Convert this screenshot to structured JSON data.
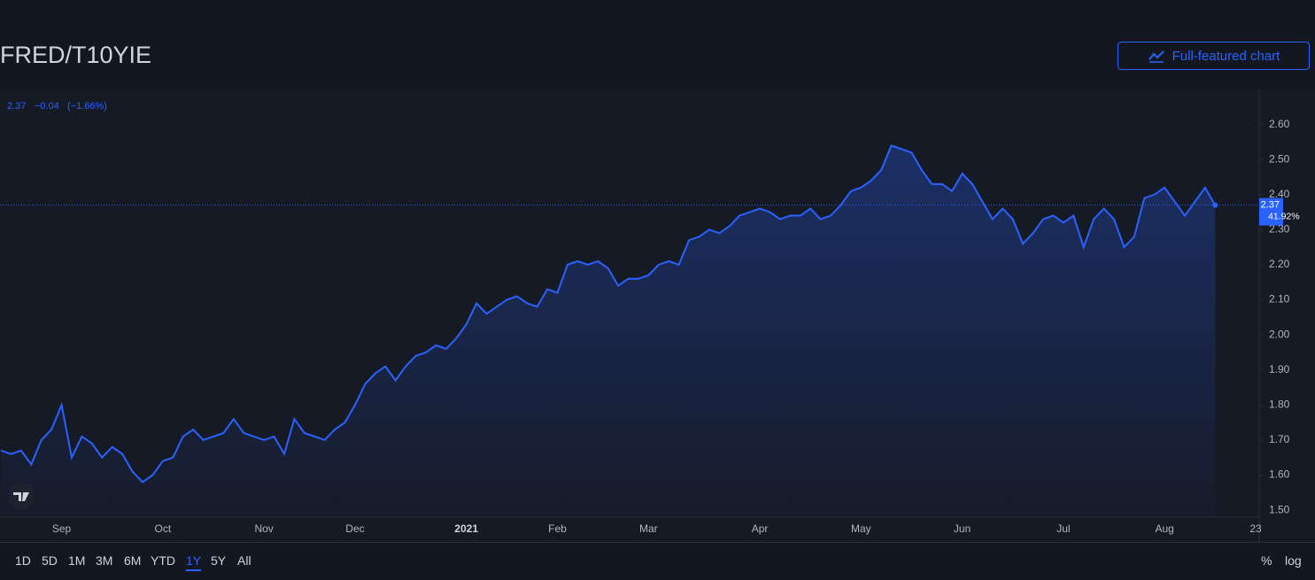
{
  "header": {
    "title": "FRED/T10YIE",
    "button": "Full-featured chart"
  },
  "chart_data": {
    "type": "area",
    "legend": {
      "last": 2.37,
      "change": {
        "value": -0.04,
        "label": "−0.04"
      },
      "change_pct": {
        "value": -1.66,
        "label": "(−1.66%)"
      }
    },
    "last_badge": {
      "price": 2.37,
      "pct": {
        "value": 41.92,
        "label": "41.92%"
      }
    },
    "categories": [
      null,
      null,
      null,
      null,
      null,
      null,
      "Sep",
      null,
      null,
      null,
      null,
      null,
      null,
      null,
      null,
      null,
      "Oct",
      null,
      null,
      null,
      null,
      null,
      null,
      null,
      null,
      null,
      "Nov",
      null,
      null,
      null,
      null,
      null,
      null,
      null,
      null,
      "Dec",
      null,
      null,
      null,
      null,
      null,
      null,
      null,
      null,
      null,
      null,
      "2021",
      null,
      null,
      null,
      null,
      null,
      null,
      null,
      null,
      "Feb",
      null,
      null,
      null,
      null,
      null,
      null,
      null,
      null,
      "Mar",
      null,
      null,
      null,
      null,
      null,
      null,
      null,
      null,
      null,
      null,
      "Apr",
      null,
      null,
      null,
      null,
      null,
      null,
      null,
      null,
      null,
      "May",
      null,
      null,
      null,
      null,
      null,
      null,
      null,
      null,
      null,
      "Jun",
      null,
      null,
      null,
      null,
      null,
      null,
      null,
      null,
      null,
      "Jul",
      null,
      null,
      null,
      null,
      null,
      null,
      null,
      null,
      null,
      "Aug",
      null,
      null,
      null,
      null,
      null,
      null,
      null,
      null,
      "23"
    ],
    "series": [
      {
        "name": "FRED/T10YIE",
        "color": "#2962ff",
        "values": [
          1.67,
          1.66,
          1.67,
          1.63,
          1.7,
          1.73,
          1.8,
          1.65,
          1.71,
          1.69,
          1.65,
          1.68,
          1.66,
          1.61,
          1.58,
          1.6,
          1.64,
          1.65,
          1.71,
          1.73,
          1.7,
          1.71,
          1.72,
          1.76,
          1.72,
          1.71,
          1.7,
          1.71,
          1.66,
          1.76,
          1.72,
          1.71,
          1.7,
          1.73,
          1.75,
          1.8,
          1.86,
          1.89,
          1.91,
          1.87,
          1.91,
          1.94,
          1.95,
          1.97,
          1.96,
          1.99,
          2.03,
          2.09,
          2.06,
          2.08,
          2.1,
          2.11,
          2.09,
          2.08,
          2.13,
          2.12,
          2.2,
          2.21,
          2.2,
          2.21,
          2.19,
          2.14,
          2.16,
          2.16,
          2.17,
          2.2,
          2.21,
          2.2,
          2.27,
          2.28,
          2.3,
          2.29,
          2.31,
          2.34,
          2.35,
          2.36,
          2.35,
          2.33,
          2.34,
          2.34,
          2.36,
          2.33,
          2.34,
          2.37,
          2.41,
          2.42,
          2.44,
          2.47,
          2.54,
          2.53,
          2.52,
          2.47,
          2.43,
          2.43,
          2.41,
          2.46,
          2.43,
          2.38,
          2.33,
          2.36,
          2.33,
          2.26,
          2.29,
          2.33,
          2.34,
          2.32,
          2.34,
          2.25,
          2.33,
          2.36,
          2.33,
          2.25,
          2.28,
          2.39,
          2.4,
          2.42,
          2.38,
          2.34,
          2.38,
          2.42,
          2.37,
          null,
          null,
          null,
          null
        ]
      }
    ],
    "ylim": [
      1.48,
      2.7
    ],
    "yticks": [
      {
        "value": 1.5,
        "label": "1.50"
      },
      {
        "value": 1.6,
        "label": "1.60"
      },
      {
        "value": 1.7,
        "label": "1.70"
      },
      {
        "value": 1.8,
        "label": "1.80"
      },
      {
        "value": 1.9,
        "label": "1.90"
      },
      {
        "value": 2.0,
        "label": "2.00"
      },
      {
        "value": 2.1,
        "label": "2.10"
      },
      {
        "value": 2.2,
        "label": "2.20"
      },
      {
        "value": 2.3,
        "label": "2.30"
      },
      {
        "value": 2.4,
        "label": "2.40"
      },
      {
        "value": 2.5,
        "label": "2.50"
      },
      {
        "value": 2.6,
        "label": "2.60"
      }
    ],
    "grid": false
  },
  "toolbar": {
    "ranges": [
      "1D",
      "5D",
      "1M",
      "3M",
      "6M",
      "YTD",
      "1Y",
      "5Y",
      "All"
    ],
    "selected": 6,
    "right": [
      "%",
      "log"
    ]
  }
}
